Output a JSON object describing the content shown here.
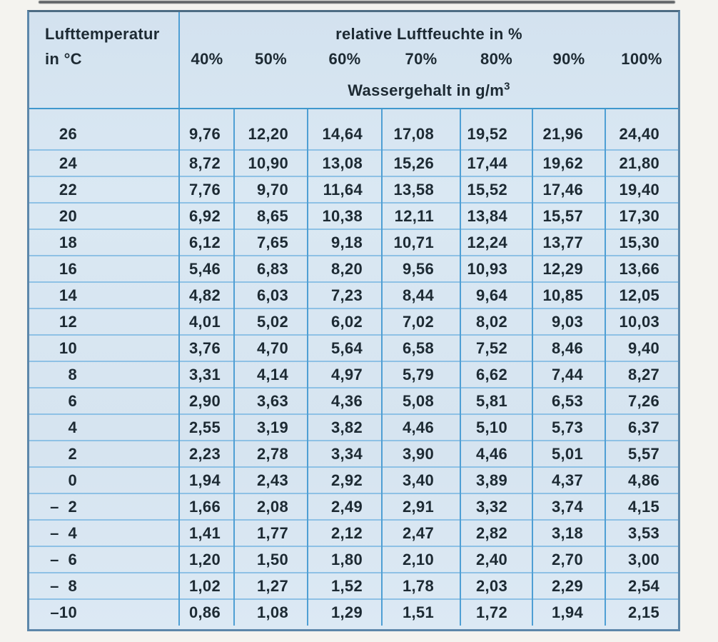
{
  "table": {
    "col1_header_line1": "Lufttemperatur",
    "col1_header_line2": "in °C",
    "group_header": "relative Luftfeuchte in %",
    "humidity_labels": [
      "40%",
      "50%",
      "60%",
      "70%",
      "80%",
      "90%",
      "100%"
    ],
    "subtitle": "Wassergehalt in g/m",
    "subtitle_sup": "3",
    "rows": [
      {
        "temp": "26",
        "values": [
          "9,76",
          "12,20",
          "14,64",
          "17,08",
          "19,52",
          "21,96",
          "24,40"
        ]
      },
      {
        "temp": "24",
        "values": [
          "8,72",
          "10,90",
          "13,08",
          "15,26",
          "17,44",
          "19,62",
          "21,80"
        ]
      },
      {
        "temp": "22",
        "values": [
          "7,76",
          "9,70",
          "11,64",
          "13,58",
          "15,52",
          "17,46",
          "19,40"
        ]
      },
      {
        "temp": "20",
        "values": [
          "6,92",
          "8,65",
          "10,38",
          "12,11",
          "13,84",
          "15,57",
          "17,30"
        ]
      },
      {
        "temp": "18",
        "values": [
          "6,12",
          "7,65",
          "9,18",
          "10,71",
          "12,24",
          "13,77",
          "15,30"
        ]
      },
      {
        "temp": "16",
        "values": [
          "5,46",
          "6,83",
          "8,20",
          "9,56",
          "10,93",
          "12,29",
          "13,66"
        ]
      },
      {
        "temp": "14",
        "values": [
          "4,82",
          "6,03",
          "7,23",
          "8,44",
          "9,64",
          "10,85",
          "12,05"
        ]
      },
      {
        "temp": "12",
        "values": [
          "4,01",
          "5,02",
          "6,02",
          "7,02",
          "8,02",
          "9,03",
          "10,03"
        ]
      },
      {
        "temp": "10",
        "values": [
          "3,76",
          "4,70",
          "5,64",
          "6,58",
          "7,52",
          "8,46",
          "9,40"
        ]
      },
      {
        "temp": "8",
        "values": [
          "3,31",
          "4,14",
          "4,97",
          "5,79",
          "6,62",
          "7,44",
          "8,27"
        ]
      },
      {
        "temp": "6",
        "values": [
          "2,90",
          "3,63",
          "4,36",
          "5,08",
          "5,81",
          "6,53",
          "7,26"
        ]
      },
      {
        "temp": "4",
        "values": [
          "2,55",
          "3,19",
          "3,82",
          "4,46",
          "5,10",
          "5,73",
          "6,37"
        ]
      },
      {
        "temp": "2",
        "values": [
          "2,23",
          "2,78",
          "3,34",
          "3,90",
          "4,46",
          "5,01",
          "5,57"
        ]
      },
      {
        "temp": "0",
        "values": [
          "1,94",
          "2,43",
          "2,92",
          "3,40",
          "3,89",
          "4,37",
          "4,86"
        ]
      },
      {
        "temp": "–  2",
        "values": [
          "1,66",
          "2,08",
          "2,49",
          "2,91",
          "3,32",
          "3,74",
          "4,15"
        ]
      },
      {
        "temp": "–  4",
        "values": [
          "1,41",
          "1,77",
          "2,12",
          "2,47",
          "2,82",
          "3,18",
          "3,53"
        ]
      },
      {
        "temp": "–  6",
        "values": [
          "1,20",
          "1,50",
          "1,80",
          "2,10",
          "2,40",
          "2,70",
          "3,00"
        ]
      },
      {
        "temp": "–  8",
        "values": [
          "1,02",
          "1,27",
          "1,52",
          "1,78",
          "2,03",
          "2,29",
          "2,54"
        ]
      },
      {
        "temp": "–10",
        "values": [
          "0,86",
          "1,08",
          "1,29",
          "1,51",
          "1,72",
          "1,94",
          "2,15"
        ]
      }
    ],
    "colors": {
      "table_background": "#d7e5f1",
      "outer_border": "#5d87aa",
      "vertical_grid": "#4f9fd4",
      "horizontal_grid": "#8ec1e5",
      "header_separator": "#3f98cd",
      "text": "#1d2a33"
    }
  }
}
